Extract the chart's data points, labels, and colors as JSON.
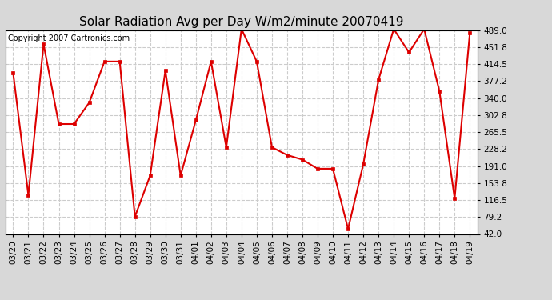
{
  "title": "Solar Radiation Avg per Day W/m2/minute 20070419",
  "copyright_text": "Copyright 2007 Cartronics.com",
  "labels": [
    "03/20",
    "03/21",
    "03/22",
    "03/23",
    "03/24",
    "03/25",
    "03/26",
    "03/27",
    "03/28",
    "03/29",
    "03/30",
    "03/31",
    "04/01",
    "04/02",
    "04/03",
    "04/04",
    "04/05",
    "04/06",
    "04/07",
    "04/08",
    "04/09",
    "04/10",
    "04/11",
    "04/12",
    "04/13",
    "04/14",
    "04/15",
    "04/16",
    "04/17",
    "04/18",
    "04/19"
  ],
  "values": [
    395,
    127,
    458,
    283,
    283,
    330,
    420,
    420,
    80,
    170,
    400,
    170,
    291,
    420,
    232,
    491,
    420,
    232,
    215,
    205,
    185,
    185,
    53,
    195,
    380,
    491,
    440,
    491,
    355,
    120,
    483
  ],
  "y_ticks": [
    42.0,
    79.2,
    116.5,
    153.8,
    191.0,
    228.2,
    265.5,
    302.8,
    340.0,
    377.2,
    414.5,
    451.8,
    489.0
  ],
  "y_min": 42.0,
  "y_max": 489.0,
  "line_color": "#dd0000",
  "marker_color": "#dd0000",
  "bg_color": "#d8d8d8",
  "plot_bg_color": "#ffffff",
  "grid_color": "#cccccc",
  "title_fontsize": 11,
  "copyright_fontsize": 7,
  "tick_fontsize": 7.5
}
